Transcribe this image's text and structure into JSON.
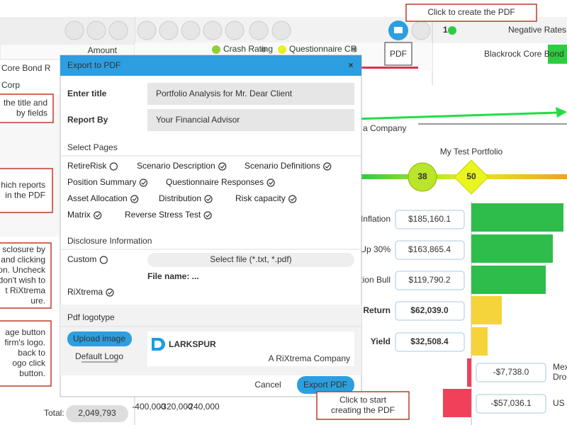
{
  "left_panel": {
    "column": "Amount",
    "rows": [
      "Core Bond R",
      "Corp"
    ],
    "total_label": "Total:",
    "total_value": "2,049,793"
  },
  "toolbar": {
    "legend": [
      "Crash Rating",
      "Questionnaire CR"
    ],
    "tooltip": "PDF",
    "badge": "1",
    "column_title": "Negative Rates Comc",
    "row_title": "Blackrock Core Bond R"
  },
  "chart": {
    "subtitle": "a Company",
    "title": "My Test Portfolio",
    "markers": [
      "38",
      "50"
    ],
    "rows": [
      {
        "label": "Inflation",
        "value": "$185,160.1"
      },
      {
        "label": "Up 30%",
        "value": "$163,865.4"
      },
      {
        "label": "ction Bull",
        "value": "$119,790.2"
      },
      {
        "label": "d Return",
        "value": "$62,039.0"
      },
      {
        "label": "Yield",
        "value": "$32,508.4"
      }
    ],
    "negative_rows": [
      {
        "value": "-$7,738.0",
        "labels": [
          "Mexi",
          "Drop"
        ]
      },
      {
        "value": "-$57,036.1",
        "labels": [
          "US N"
        ]
      }
    ],
    "axis_labels": [
      "-400,000",
      "-320,000",
      "-240,000"
    ]
  },
  "dialog": {
    "title": "Export to PDF",
    "close": "×",
    "fields": [
      {
        "label": "Enter title",
        "value": "Portfolio Analysis for Mr. Dear Client"
      },
      {
        "label": "Report By",
        "value": "Your Financial Advisor"
      }
    ],
    "pages_heading": "Select Pages",
    "pages": [
      {
        "name": "RetireRisk",
        "checked": false
      },
      {
        "name": "Scenario Description",
        "checked": true
      },
      {
        "name": "Scenario Definitions",
        "checked": true
      },
      {
        "name": "Position Summary",
        "checked": true
      },
      {
        "name": "Questionnaire Responses",
        "checked": true
      },
      {
        "name": "Asset Allocation",
        "checked": true
      },
      {
        "name": "Distribution",
        "checked": true
      },
      {
        "name": "Risk capacity",
        "checked": true
      },
      {
        "name": "Matrix",
        "checked": true
      },
      {
        "name": "Reverse Stress Test",
        "checked": true
      }
    ],
    "disclosure_heading": "Disclosure Information",
    "disclosure_options": [
      {
        "name": "Custom",
        "checked": false
      },
      {
        "name": "RiXtrema",
        "checked": true
      }
    ],
    "select_file": "Select file (*.txt, *.pdf)",
    "file_name": "File name: ...",
    "logo_heading": "Pdf logotype",
    "upload_button": "Upload image",
    "default_logo": "Default Logo",
    "logo_name": "LARKSPUR",
    "logo_tagline": "A RiXtrema Company",
    "cancel": "Cancel",
    "export": "Export PDF"
  },
  "callouts": [
    {
      "lines": [
        "Click to create the PDF"
      ]
    },
    {
      "lines": [
        "Click to start",
        "creating the PDF"
      ]
    },
    {
      "lines": [
        "the title and",
        "by fields"
      ]
    },
    {
      "lines": [
        "hich reports",
        "in the PDF"
      ]
    },
    {
      "lines": [
        "sclosure by",
        "and clicking",
        "on. Uncheck",
        "don't wish to",
        "t RiXtrema",
        "ure."
      ]
    },
    {
      "lines": [
        "age button",
        "firm's logo.",
        "back to",
        "ogo click",
        "button."
      ]
    }
  ]
}
